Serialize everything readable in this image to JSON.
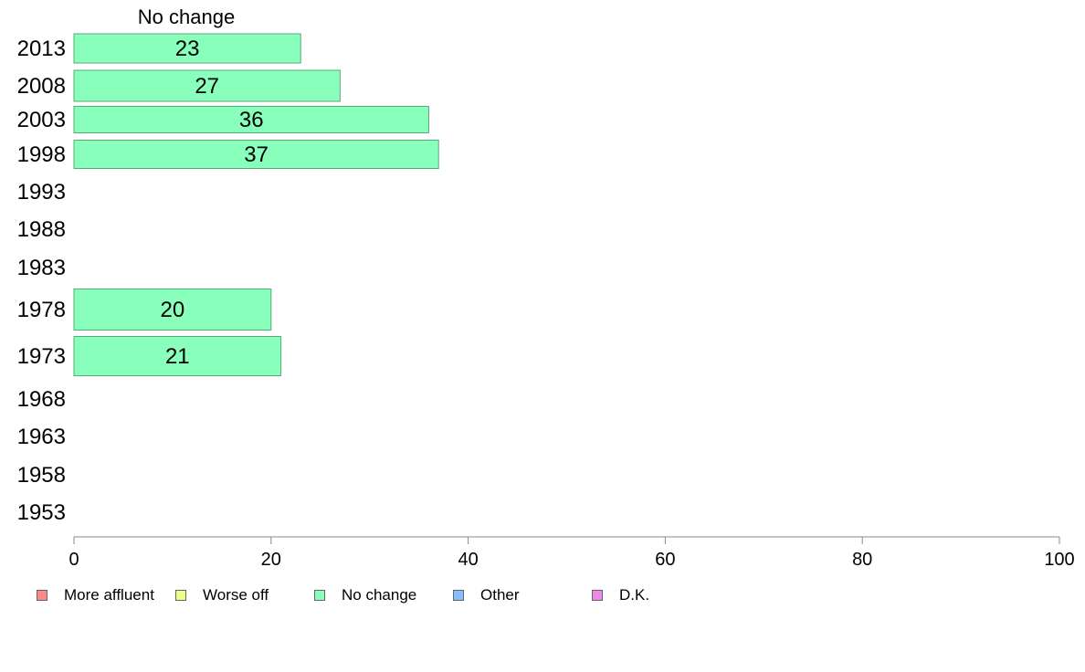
{
  "chart_data": {
    "type": "bar",
    "orientation": "horizontal",
    "title": "No change",
    "categories": [
      "2013",
      "2008",
      "2003",
      "1998",
      "1993",
      "1988",
      "1983",
      "1978",
      "1973",
      "1968",
      "1963",
      "1958",
      "1953"
    ],
    "series": [
      {
        "name": "No change",
        "color": "#88ffbb",
        "values": [
          23,
          27,
          36,
          37,
          null,
          null,
          null,
          20,
          21,
          null,
          null,
          null,
          null
        ],
        "labels": [
          "23",
          "27",
          "36",
          "37",
          "",
          "",
          "",
          "20",
          "21",
          "",
          "",
          "",
          ""
        ]
      }
    ],
    "xlim": [
      0,
      100
    ],
    "xticks": [
      "0",
      "20",
      "40",
      "60",
      "80",
      "100"
    ],
    "grid": false,
    "legend_position": "bottom"
  },
  "legend": {
    "items": [
      {
        "label": "More affluent",
        "color": "#ff8888"
      },
      {
        "label": "Worse off",
        "color": "#eeff88"
      },
      {
        "label": "No change",
        "color": "#88ffbb"
      },
      {
        "label": "Other",
        "color": "#88bbff"
      },
      {
        "label": "D.K.",
        "color": "#ee88ee"
      }
    ]
  }
}
